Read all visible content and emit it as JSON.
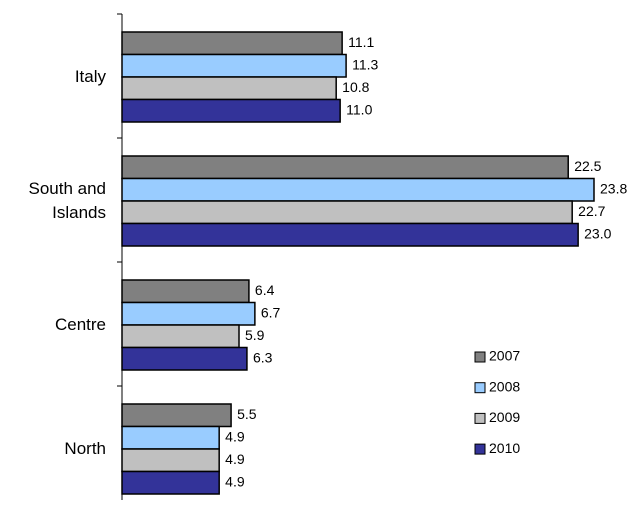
{
  "chart_data": {
    "type": "hbar",
    "categories": [
      "Italy",
      "South and Islands",
      "Centre",
      "North"
    ],
    "series": [
      {
        "name": "2007",
        "color": "#808080",
        "values": [
          11.1,
          22.5,
          6.4,
          5.5
        ]
      },
      {
        "name": "2008",
        "color": "#99ccff",
        "values": [
          11.3,
          23.8,
          6.7,
          4.9
        ]
      },
      {
        "name": "2009",
        "color": "#c0c0c0",
        "values": [
          10.8,
          22.7,
          5.9,
          4.9
        ]
      },
      {
        "name": "2010",
        "color": "#333399",
        "values": [
          11.0,
          23.0,
          6.3,
          4.9
        ],
        "value_labels": [
          "11.0",
          "23.0",
          "6.3",
          "4.9"
        ]
      }
    ],
    "legend": "lower right"
  }
}
